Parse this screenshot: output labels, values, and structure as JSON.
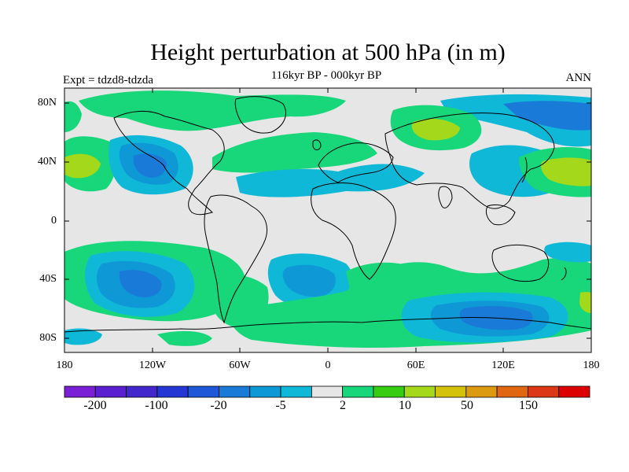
{
  "title": "Height perturbation at 500 hPa (in m)",
  "subtitle": "116kyr BP - 000kyr BP",
  "left_label": "Expt = tdzd8-tdzda",
  "right_label": "ANN",
  "lat_labels": [
    "80N",
    "40N",
    "0",
    "40S",
    "80S"
  ],
  "lon_labels": [
    "180",
    "120W",
    "60W",
    "0",
    "60E",
    "120E",
    "180"
  ],
  "colorbar": {
    "colors": [
      "#7a1fd6",
      "#5a1fd0",
      "#4228cc",
      "#2436d4",
      "#1c58d8",
      "#1a7ad8",
      "#0f98d6",
      "#10b8d8",
      "#e6e6e6",
      "#17d77a",
      "#36cc12",
      "#a4d81a",
      "#d4c20a",
      "#dc9a10",
      "#e06610",
      "#dc3818",
      "#dc0000"
    ],
    "tick_labels": [
      "-200",
      "-100",
      "-20",
      "-5",
      "2",
      "10",
      "50",
      "150"
    ]
  },
  "palette": {
    "neutral": "#e6e6e6",
    "light_green": "#17d77a",
    "green": "#36cc12",
    "yellow_green": "#a4d81a",
    "cyan": "#10b8d8",
    "light_blue": "#0f98d6",
    "blue": "#1a7ad8",
    "coast": "#000000"
  }
}
